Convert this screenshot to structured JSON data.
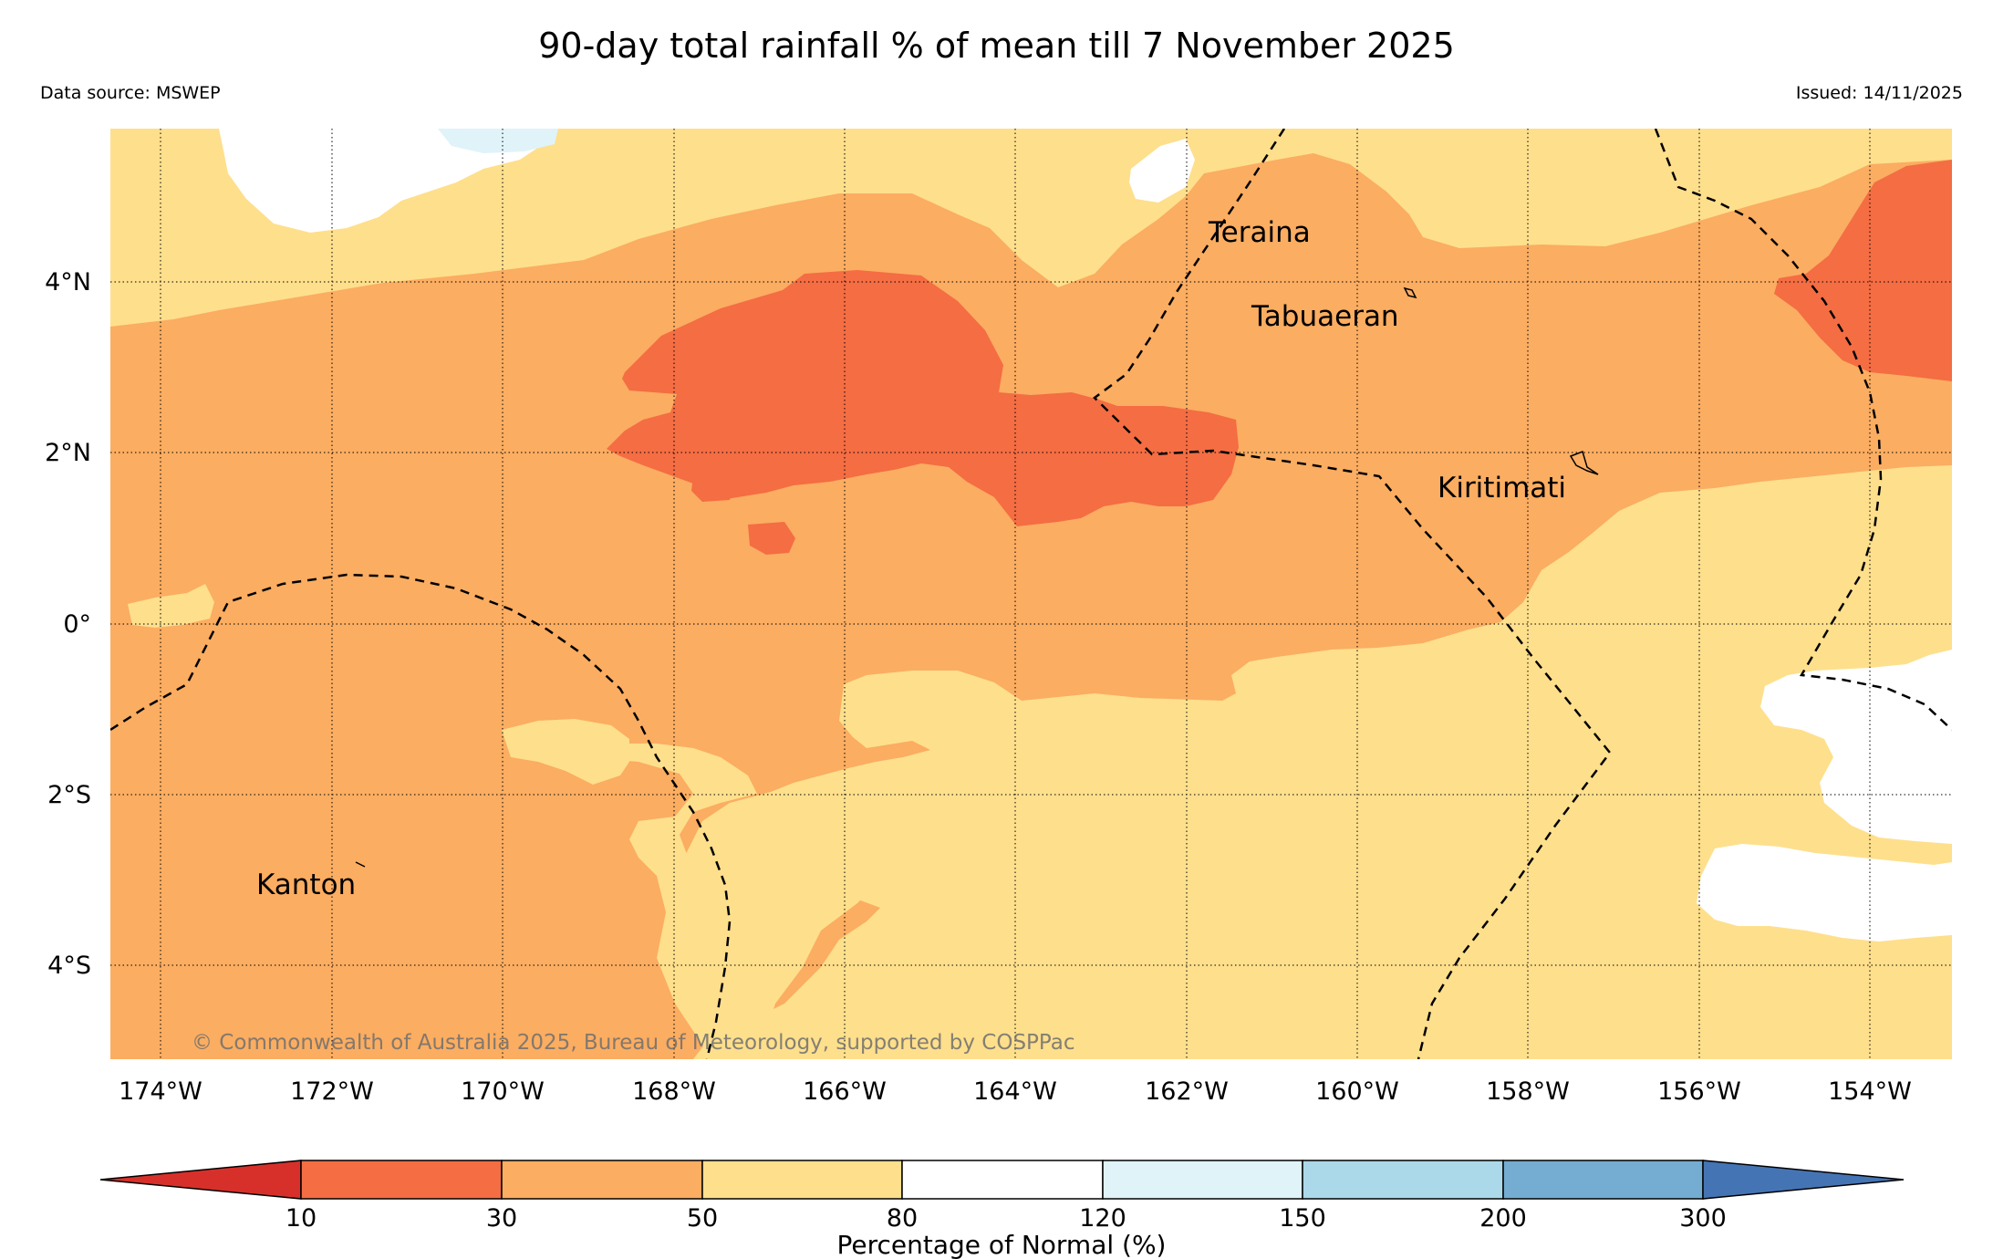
{
  "title": "90-day total rainfall % of mean till 7 November 2025",
  "data_source": "Data source: MSWEP",
  "issued": "Issued: 14/11/2025",
  "copyright": "© Commonwealth of Australia 2025, Bureau of Meteorology, supported by COSPPac",
  "latitude_labels": [
    "4°N",
    "2°N",
    "0°",
    "2°S",
    "4°S"
  ],
  "longitude_labels": [
    "174°W",
    "172°W",
    "170°W",
    "168°W",
    "166°W",
    "164°W",
    "162°W",
    "160°W",
    "158°W",
    "156°W",
    "154°W"
  ],
  "place_labels": [
    "Teraina",
    "Tabuaeran",
    "Kiritimati",
    "Kanton"
  ],
  "colorbar": {
    "title": "Percentage of Normal (%)",
    "ticks": [
      "10",
      "30",
      "50",
      "80",
      "120",
      "150",
      "200",
      "300"
    ],
    "colors": [
      "#d7302a",
      "#f46d43",
      "#fbad61",
      "#fedf8c",
      "#ffffff",
      "#e0f3f8",
      "#abd9e9",
      "#74add1",
      "#4574b4"
    ]
  },
  "map_colors": {
    "lt30": "#f46d43",
    "30_50": "#fbad61",
    "50_80": "#fedf8c",
    "80_120": "#ffffff",
    "120_150": "#e0f3f8"
  }
}
